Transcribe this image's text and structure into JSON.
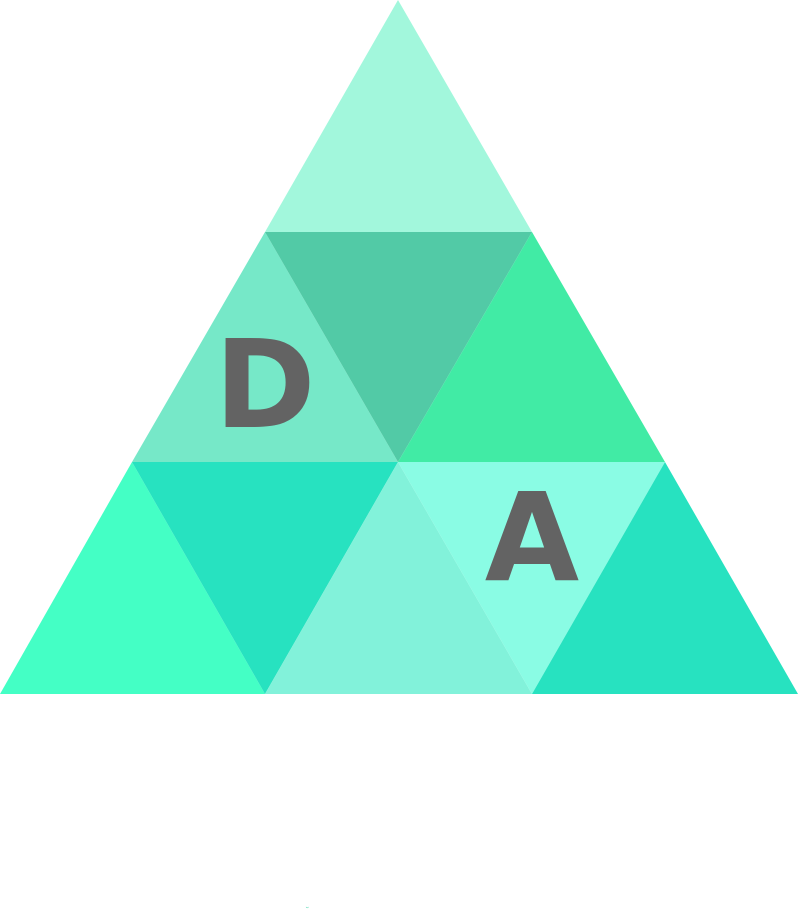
{
  "logo": {
    "letters": {
      "left": "D",
      "right": "A"
    },
    "letter_color": "#636363",
    "colors": {
      "top": "#a2f7dc",
      "mid_left": "#76e8c8",
      "mid_center_inverted": "#52caa6",
      "mid_right": "#41eba5",
      "bottom_left": "#44ffc5",
      "bottom_left_inverted": "#27e2c0",
      "bottom_center": "#82f2da",
      "bottom_center_right_inverted": "#8afce4",
      "bottom_right": "#27e2c0"
    }
  },
  "footer": {
    "mark": "˘",
    "mark_color": "#5fd9b7"
  }
}
